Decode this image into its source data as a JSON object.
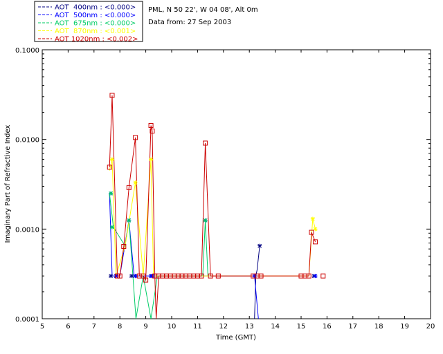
{
  "header": {
    "site": "PML, N 50 22', W 04 08', Alt 0m",
    "date": "Data from: 27 Sep 2003"
  },
  "chart_data": {
    "type": "line",
    "xlabel": "Time (GMT)",
    "ylabel": "Imaginary Part of Refractive Index",
    "xlim": [
      5,
      20
    ],
    "ylim": [
      0.0001,
      0.1
    ],
    "yscale": "log",
    "grid": false,
    "legend_position": "top-left",
    "x_ticks": [
      "5",
      "6",
      "7",
      "8",
      "9",
      "10",
      "11",
      "12",
      "13",
      "14",
      "15",
      "16",
      "17",
      "18",
      "19",
      "20"
    ],
    "y_ticks": [
      {
        "label": "0.0001",
        "value": 0.0001
      },
      {
        "label": "0.0010",
        "value": 0.001
      },
      {
        "label": "0.0100",
        "value": 0.01
      },
      {
        "label": "0.1000",
        "value": 0.1
      }
    ],
    "series": [
      {
        "name": "AOT  400nm : <0.000>",
        "color": "#000080",
        "marker": "star",
        "markers": [
          [
            7.65,
            0.0003
          ],
          [
            7.85,
            0.0003
          ],
          [
            8.45,
            0.0003
          ],
          [
            8.6,
            0.0003
          ],
          [
            9.2,
            0.0003
          ],
          [
            9.25,
            0.0003
          ],
          [
            13.4,
            0.00065
          ],
          [
            15.5,
            0.0003
          ]
        ],
        "line": [
          [
            13.2,
            0.0001
          ],
          [
            13.25,
            0.0003
          ],
          [
            13.3,
            0.00035
          ],
          [
            13.4,
            0.00065
          ]
        ]
      },
      {
        "name": "AOT  500nm : <0.000>",
        "color": "#0000ff",
        "marker": "star",
        "markers": [
          [
            7.65,
            0.0025
          ],
          [
            7.85,
            0.0003
          ],
          [
            8.35,
            0.00125
          ],
          [
            8.6,
            0.0003
          ],
          [
            9.2,
            0.0003
          ],
          [
            9.25,
            0.0003
          ],
          [
            11.3,
            0.00125
          ],
          [
            13.2,
            0.0003
          ],
          [
            15.55,
            0.0003
          ]
        ],
        "line": [
          [
            7.6,
            0.0025
          ],
          [
            7.7,
            0.0003
          ],
          [
            8.0,
            0.0003
          ],
          [
            8.35,
            0.00125
          ],
          [
            8.55,
            0.0003
          ],
          [
            8.65,
            0.0003
          ],
          [
            9.15,
            0.0003
          ],
          [
            9.3,
            0.0003
          ],
          [
            13.2,
            0.0003
          ],
          [
            13.35,
            0.0001
          ]
        ]
      },
      {
        "name": "AOT  675nm : <0.000>",
        "color": "#00cc66",
        "marker": "star",
        "markers": [
          [
            7.65,
            0.0025
          ],
          [
            7.7,
            0.00105
          ],
          [
            8.35,
            0.00125
          ],
          [
            11.3,
            0.00125
          ]
        ],
        "line": [
          [
            7.6,
            0.0025
          ],
          [
            7.75,
            0.00105
          ],
          [
            8.2,
            0.00065
          ],
          [
            8.35,
            0.00125
          ],
          [
            8.62,
            0.0001
          ],
          [
            8.9,
            0.0003
          ],
          [
            9.2,
            0.0001
          ],
          [
            9.45,
            0.0003
          ],
          [
            11.2,
            0.0003
          ],
          [
            11.3,
            0.00125
          ],
          [
            11.4,
            0.0003
          ]
        ]
      },
      {
        "name": "AOT  870nm : <0.001>",
        "color": "#ffff00",
        "marker": "star",
        "markers": [
          [
            7.7,
            0.006
          ],
          [
            8.6,
            0.0033
          ],
          [
            9.2,
            0.006
          ],
          [
            15.45,
            0.0013
          ],
          [
            15.55,
            0.001
          ]
        ],
        "line": [
          [
            7.6,
            0.0045
          ],
          [
            7.7,
            0.006
          ],
          [
            7.85,
            0.0003
          ],
          [
            8.2,
            0.00065
          ],
          [
            8.6,
            0.0033
          ],
          [
            8.9,
            0.0003
          ],
          [
            9.2,
            0.006
          ],
          [
            9.3,
            0.0003
          ],
          [
            15.3,
            0.0003
          ],
          [
            15.45,
            0.0013
          ],
          [
            15.55,
            0.001
          ]
        ]
      },
      {
        "name": "AOT 1020nm : <0.002>",
        "color": "#cc0000",
        "marker": "square",
        "markers": [
          [
            7.6,
            0.0049
          ],
          [
            7.7,
            0.031
          ],
          [
            7.9,
            0.0003
          ],
          [
            8.0,
            0.0003
          ],
          [
            8.15,
            0.00064
          ],
          [
            8.35,
            0.0029
          ],
          [
            8.6,
            0.0105
          ],
          [
            8.75,
            0.0003
          ],
          [
            8.9,
            0.0003
          ],
          [
            9.0,
            0.00027
          ],
          [
            9.2,
            0.0143
          ],
          [
            9.25,
            0.0124
          ],
          [
            9.35,
            0.0003
          ],
          [
            9.5,
            0.0003
          ],
          [
            9.65,
            0.0003
          ],
          [
            9.8,
            0.0003
          ],
          [
            9.95,
            0.0003
          ],
          [
            10.1,
            0.0003
          ],
          [
            10.25,
            0.0003
          ],
          [
            10.4,
            0.0003
          ],
          [
            10.55,
            0.0003
          ],
          [
            10.7,
            0.0003
          ],
          [
            10.85,
            0.0003
          ],
          [
            11.0,
            0.0003
          ],
          [
            11.15,
            0.0003
          ],
          [
            11.3,
            0.0091
          ],
          [
            11.5,
            0.0003
          ],
          [
            11.8,
            0.0003
          ],
          [
            13.15,
            0.0003
          ],
          [
            13.3,
            0.0003
          ],
          [
            13.45,
            0.0003
          ],
          [
            15.0,
            0.0003
          ],
          [
            15.15,
            0.0003
          ],
          [
            15.3,
            0.0003
          ],
          [
            15.4,
            0.00092
          ],
          [
            15.55,
            0.00072
          ],
          [
            15.85,
            0.0003
          ]
        ],
        "line": [
          [
            7.6,
            0.0049
          ],
          [
            7.7,
            0.031
          ],
          [
            7.9,
            0.0003
          ],
          [
            8.0,
            0.0003
          ],
          [
            8.15,
            0.00064
          ],
          [
            8.35,
            0.0029
          ],
          [
            8.6,
            0.0105
          ],
          [
            8.75,
            0.0003
          ],
          [
            8.9,
            0.0003
          ],
          [
            9.0,
            0.00027
          ],
          [
            9.2,
            0.0143
          ],
          [
            9.25,
            0.0124
          ],
          [
            9.35,
            0.0003
          ],
          [
            9.4,
            0.0001
          ],
          [
            9.5,
            0.0003
          ],
          [
            11.15,
            0.0003
          ],
          [
            11.3,
            0.0091
          ],
          [
            11.5,
            0.0003
          ],
          [
            15.3,
            0.0003
          ],
          [
            15.4,
            0.00092
          ],
          [
            15.55,
            0.00072
          ]
        ]
      }
    ]
  }
}
